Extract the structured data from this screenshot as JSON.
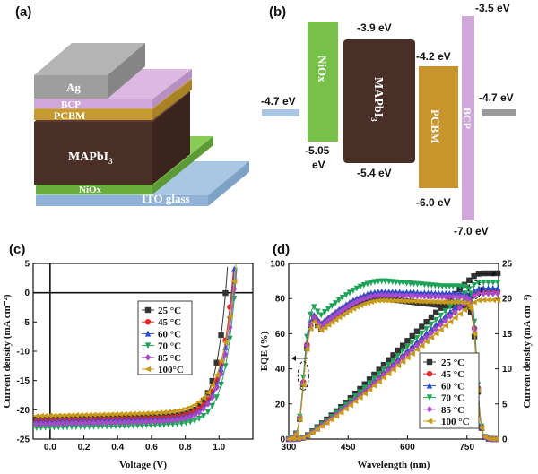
{
  "panels": {
    "a": {
      "label": "(a)",
      "layers": [
        {
          "name": "Ag",
          "color": "#9e9e9e"
        },
        {
          "name": "BCP",
          "color": "#cfa7d8"
        },
        {
          "name": "PCBM",
          "color": "#c69a31"
        },
        {
          "name": "MAPbI",
          "sub": "3",
          "color": "#4a2f27"
        },
        {
          "name": "NiOx",
          "color": "#74c14a"
        },
        {
          "name": "ITO glass",
          "color": "#a9c7e3"
        }
      ]
    },
    "b": {
      "label": "(b)",
      "ito_left": "-4.7 eV",
      "ag_right": "-4.7 eV",
      "niox": {
        "name": "NiOx",
        "top": "",
        "bottom": "-5.05",
        "bottom2": "eV",
        "color": "#77c04a"
      },
      "mapbi": {
        "name": "MAPbI",
        "sub": "3",
        "top": "-3.9 eV",
        "bottom": "-5.4 eV",
        "color": "#4a2f27"
      },
      "pcbm": {
        "name": "PCBM",
        "top": "-4.2 eV",
        "bottom": "-6.0 eV",
        "color": "#c8952d"
      },
      "bcp": {
        "name": "BCP",
        "top": "-3.5 eV",
        "bottom": "-7.0 eV",
        "color": "#cfa7d8"
      }
    },
    "c": {
      "label": "(c)"
    },
    "d": {
      "label": "(d)"
    }
  },
  "chart_data": [
    {
      "type": "line",
      "panel": "c",
      "xlabel": "Voltage (V)",
      "ylabel": "Current density (mA cm⁻²)",
      "xlim": [
        -0.1,
        1.2
      ],
      "ylim": [
        -25,
        5
      ],
      "xticks": [
        "0.0",
        "0.2",
        "0.4",
        "0.6",
        "0.8",
        "1.0"
      ],
      "xtick_values": [
        0,
        0.2,
        0.4,
        0.6,
        0.8,
        1.0
      ],
      "yticks": [
        "5",
        "0",
        "-5",
        "-10",
        "-15",
        "-20",
        "-25"
      ],
      "ytick_values": [
        5,
        0,
        -5,
        -10,
        -15,
        -20,
        -25
      ],
      "legend_position": "upper-right",
      "series": [
        {
          "name": "25 °C",
          "color": "#333333",
          "marker": "square",
          "jsc": -21.6,
          "voc": 1.04,
          "n": 2.4
        },
        {
          "name": "45 °C",
          "color": "#e4262b",
          "marker": "circle",
          "jsc": -21.9,
          "voc": 1.075,
          "n": 2.8
        },
        {
          "name": "60 °C",
          "color": "#2b4fd0",
          "marker": "triangle-up",
          "jsc": -22.0,
          "voc": 1.08,
          "n": 2.7
        },
        {
          "name": "70 °C",
          "color": "#1fa35a",
          "marker": "triangle-down",
          "jsc": -23.0,
          "voc": 1.095,
          "n": 2.6
        },
        {
          "name": "85 °C",
          "color": "#a64ac9",
          "marker": "diamond",
          "jsc": -22.4,
          "voc": 1.09,
          "n": 2.9
        },
        {
          "name": "100°C",
          "color": "#c99a17",
          "marker": "triangle-left",
          "jsc": -21.0,
          "voc": 1.085,
          "n": 3.2
        }
      ]
    },
    {
      "type": "line",
      "panel": "d",
      "xlabel": "Wavelength (nm)",
      "ylabel": "EQE (%)",
      "ylabel_right": "Current density (mA cm⁻²)",
      "xlim": [
        300,
        830
      ],
      "ylim": [
        0,
        100
      ],
      "ylim_right": [
        0,
        25
      ],
      "xticks": [
        "300",
        "450",
        "600",
        "750"
      ],
      "xtick_values": [
        300,
        450,
        600,
        750
      ],
      "yticks": [
        "0",
        "20",
        "40",
        "60",
        "80",
        "100"
      ],
      "ytick_values": [
        0,
        20,
        40,
        60,
        80,
        100
      ],
      "yticks_right": [
        "0",
        "5",
        "10",
        "15",
        "20",
        "25"
      ],
      "ytick_right_values": [
        0,
        5,
        10,
        15,
        20,
        25
      ],
      "legend_position": "lower-right",
      "series": [
        {
          "name": "25 °C",
          "color": "#333333",
          "marker": "square",
          "peak": 80,
          "plateau": 76,
          "jsc": 23.6
        },
        {
          "name": "45 °C",
          "color": "#e4262b",
          "marker": "circle",
          "peak": 83,
          "plateau": 82,
          "jsc": 21.1
        },
        {
          "name": "60 °C",
          "color": "#2b4fd0",
          "marker": "triangle-up",
          "peak": 84,
          "plateau": 83,
          "jsc": 21.5
        },
        {
          "name": "70 °C",
          "color": "#1fa35a",
          "marker": "triangle-down",
          "peak": 90,
          "plateau": 87,
          "jsc": 22.3
        },
        {
          "name": "85 °C",
          "color": "#a64ac9",
          "marker": "diamond",
          "peak": 82,
          "plateau": 81,
          "jsc": 20.7
        },
        {
          "name": "100 °C",
          "color": "#c99a17",
          "marker": "triangle-left",
          "peak": 79,
          "plateau": 78,
          "jsc": 19.8
        }
      ]
    }
  ]
}
